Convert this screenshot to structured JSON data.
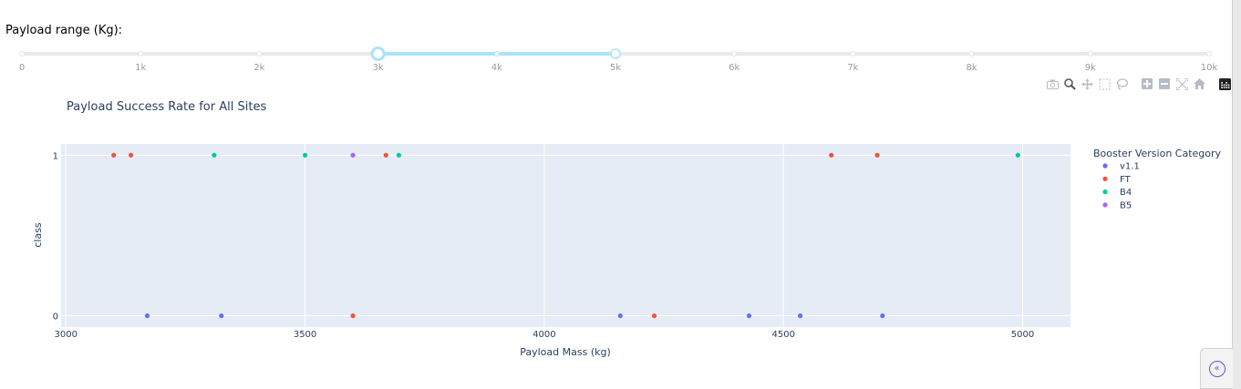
{
  "slider": {
    "label": "Payload range (Kg):",
    "min": 0,
    "max": 10000,
    "marks": [
      "0",
      "1k",
      "2k",
      "3k",
      "4k",
      "5k",
      "6k",
      "7k",
      "8k",
      "9k",
      "10k"
    ],
    "value": [
      3000,
      5000
    ],
    "colors": {
      "track": "#e9e9e9",
      "range": "#abe2fb",
      "handle": "#abe2fb",
      "mark_text": "#9a9a9a"
    }
  },
  "modebar": {
    "icons": [
      "camera-icon",
      "zoom-icon",
      "pan-icon",
      "box-select-icon",
      "lasso-icon",
      "zoom-in-icon",
      "zoom-out-icon",
      "autoscale-icon",
      "reset-axes-icon",
      "plotly-logo-icon"
    ]
  },
  "chart_data": {
    "type": "scatter",
    "title": "Payload Success Rate for All Sites",
    "xlabel": "Payload Mass (kg)",
    "ylabel": "class",
    "xlim": [
      2990,
      5100
    ],
    "ylim": [
      -0.07,
      1.07
    ],
    "xticks": [
      3000,
      3500,
      4000,
      4500,
      5000
    ],
    "xtick_labels": [
      "3000",
      "3500",
      "4000",
      "4500",
      "5000"
    ],
    "yticks": [
      0,
      1
    ],
    "ytick_labels": [
      "0",
      "1"
    ],
    "grid": true,
    "legend_title": "Booster Version Category",
    "legend_position": "right",
    "plot_bgcolor": "#e5ecf6",
    "series": [
      {
        "name": "v1.1",
        "color": "#636efa",
        "x": [
          3170,
          3325,
          4159,
          4428,
          4535,
          4707
        ],
        "y": [
          0,
          0,
          0,
          0,
          0,
          0
        ]
      },
      {
        "name": "FT",
        "color": "#ef553b",
        "x": [
          3100,
          3136,
          3600,
          3669,
          4230,
          4600,
          4696
        ],
        "y": [
          1,
          1,
          0,
          1,
          0,
          1,
          1
        ]
      },
      {
        "name": "B4",
        "color": "#00cc96",
        "x": [
          3310,
          3500,
          3696,
          4990
        ],
        "y": [
          1,
          1,
          1,
          1
        ]
      },
      {
        "name": "B5",
        "color": "#ab63fa",
        "x": [
          3600
        ],
        "y": [
          1
        ]
      }
    ]
  }
}
